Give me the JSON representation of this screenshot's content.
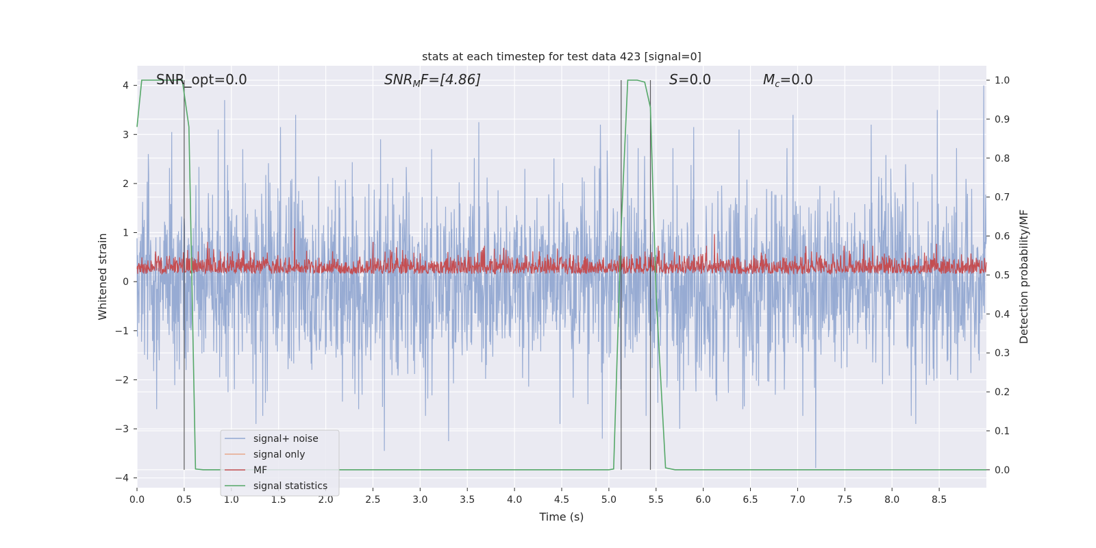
{
  "chart_data": {
    "type": "line",
    "title": "stats at each timestep for test data 423 [signal=0]",
    "xlabel": "Time (s)",
    "ylabel": "Whitened strain",
    "y2label": "Detection probability/MF",
    "xlim": [
      0.0,
      9.0
    ],
    "ylim": [
      -4.2,
      4.4
    ],
    "y2lim": [
      -0.046,
      1.037
    ],
    "xticks": [
      0.0,
      0.5,
      1.0,
      1.5,
      2.0,
      2.5,
      3.0,
      3.5,
      4.0,
      4.5,
      5.0,
      5.5,
      6.0,
      6.5,
      7.0,
      7.5,
      8.0,
      8.5
    ],
    "xtick_labels": [
      "0.0",
      "0.5",
      "1.0",
      "1.5",
      "2.0",
      "2.5",
      "3.0",
      "3.5",
      "4.0",
      "4.5",
      "5.0",
      "5.5",
      "6.0",
      "6.5",
      "7.0",
      "7.5",
      "8.0",
      "8.5"
    ],
    "yticks": [
      4,
      3,
      2,
      1,
      0,
      -1,
      -2,
      -3,
      -4
    ],
    "ytick_labels": [
      "4",
      "3",
      "2",
      "1",
      "0",
      "−1",
      "−2",
      "−3",
      "−4"
    ],
    "y2ticks": [
      1.0,
      0.9,
      0.8,
      0.7,
      0.6,
      0.5,
      0.4,
      0.3,
      0.2,
      0.1,
      0.0
    ],
    "y2tick_labels": [
      "1.0",
      "0.9",
      "0.8",
      "0.7",
      "0.6",
      "0.5",
      "0.4",
      "0.3",
      "0.2",
      "0.1",
      "0.0"
    ],
    "grid": true,
    "legend_position": "bottom-left",
    "annotations": {
      "snr_opt": "SNR_opt=0.0",
      "snr_mf_sym": "SNR",
      "snr_mf_sub": "M",
      "snr_mf_rest": "F=[4.86]",
      "s_sym": "S",
      "s_rest": "=0.0",
      "mc_sym": "M",
      "mc_sub": "c",
      "mc_rest": "=0.0"
    },
    "vlines_x": [
      0.5,
      5.13,
      5.44
    ],
    "series": [
      {
        "name": "signal+ noise",
        "color": "#92a8d1",
        "axis": "left",
        "n_samples": 2250,
        "range": [
          -3.8,
          4.0
        ],
        "peaks": [
          [
            0.12,
            2.6
          ],
          [
            0.21,
            -2.6
          ],
          [
            0.37,
            3.05
          ],
          [
            0.52,
            -1.8
          ],
          [
            0.86,
            3.1
          ],
          [
            0.93,
            3.7
          ],
          [
            1.12,
            2.7
          ],
          [
            1.26,
            -2.9
          ],
          [
            1.52,
            3.15
          ],
          [
            1.68,
            3.4
          ],
          [
            2.35,
            -2.6
          ],
          [
            2.58,
            2.9
          ],
          [
            2.62,
            -3.45
          ],
          [
            3.12,
            2.7
          ],
          [
            3.3,
            -3.25
          ],
          [
            3.62,
            3.25
          ],
          [
            4.48,
            -2.9
          ],
          [
            4.91,
            3.2
          ],
          [
            4.93,
            -3.2
          ],
          [
            5.2,
            3.0
          ],
          [
            5.75,
            -3.0
          ],
          [
            5.9,
            3.15
          ],
          [
            6.38,
            3.1
          ],
          [
            6.42,
            -2.6
          ],
          [
            6.95,
            3.4
          ],
          [
            7.19,
            -3.8
          ],
          [
            7.78,
            3.2
          ],
          [
            8.48,
            3.5
          ],
          [
            8.25,
            -2.9
          ],
          [
            8.97,
            4.0
          ]
        ]
      },
      {
        "name": "signal only",
        "color": "#e8a789",
        "axis": "left",
        "values": [
          0,
          0
        ]
      },
      {
        "name": "MF",
        "color": "#c44e52",
        "axis": "right",
        "n_samples": 2250,
        "range": [
          0.5,
          0.62
        ],
        "peaks": [
          [
            1.67,
            0.62
          ],
          [
            6.12,
            0.605
          ],
          [
            2.5,
            0.585
          ],
          [
            0.75,
            0.585
          ],
          [
            7.7,
            0.58
          ],
          [
            8.47,
            0.58
          ]
        ]
      },
      {
        "name": "signal statistics",
        "color": "#55a868",
        "axis": "right",
        "x": [
          0.0,
          0.05,
          0.1,
          0.2,
          0.3,
          0.4,
          0.48,
          0.55,
          0.62,
          0.7,
          1.0,
          2.0,
          3.0,
          4.0,
          5.0,
          5.05,
          5.13,
          5.2,
          5.3,
          5.38,
          5.44,
          5.5,
          5.6,
          5.7,
          6.0,
          7.0,
          8.0,
          9.0
        ],
        "values": [
          0.88,
          1.0,
          1.0,
          1.0,
          1.0,
          1.0,
          1.0,
          0.88,
          0.002,
          0.0,
          0.0,
          0.0,
          0.0,
          0.0,
          0.0,
          0.002,
          0.62,
          1.0,
          1.0,
          0.995,
          0.93,
          0.45,
          0.005,
          0.0,
          0.0,
          0.0,
          0.0,
          0.0
        ]
      }
    ]
  }
}
